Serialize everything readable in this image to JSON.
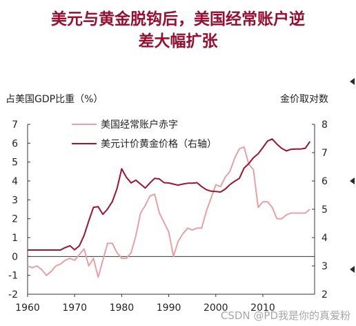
{
  "title_lines": [
    "美元与黄金脱钩后，美国经常账户逆",
    "差大幅扩张"
  ],
  "left_axis_label": "占美国GDP比重（%）",
  "right_axis_label": "金价取对数",
  "watermark": "CSDN @PD我是你的真爱粉",
  "colors": {
    "title": "#9a0d2f",
    "deficit": "#e8a0a5",
    "gold": "#a0122f",
    "bullet": "#2b2b2b"
  },
  "chart_data": {
    "type": "line",
    "xlim": [
      1960,
      2021
    ],
    "x_ticks": [
      1960,
      1970,
      1980,
      1990,
      2000,
      2010
    ],
    "ylim_left": [
      -2,
      7
    ],
    "y_left_ticks": [
      -2,
      -1,
      0,
      1,
      2,
      3,
      4,
      5,
      6,
      7
    ],
    "ylim_right": [
      2,
      8
    ],
    "y_right_ticks": [
      2,
      3,
      4,
      5,
      6,
      7,
      8
    ],
    "legend": "top-left",
    "series": [
      {
        "name": "美国经常账户赤字",
        "axis": "left",
        "x": [
          1960,
          1961,
          1962,
          1963,
          1964,
          1965,
          1966,
          1967,
          1968,
          1969,
          1970,
          1971,
          1972,
          1973,
          1974,
          1975,
          1976,
          1977,
          1978,
          1979,
          1980,
          1981,
          1982,
          1983,
          1984,
          1985,
          1986,
          1987,
          1988,
          1989,
          1990,
          1991,
          1992,
          1993,
          1994,
          1995,
          1996,
          1997,
          1998,
          1999,
          2000,
          2001,
          2002,
          2003,
          2004,
          2005,
          2006,
          2007,
          2008,
          2009,
          2010,
          2011,
          2012,
          2013,
          2014,
          2015,
          2016,
          2017,
          2018,
          2019,
          2020
        ],
        "values": [
          -0.5,
          -0.6,
          -0.5,
          -0.7,
          -1.0,
          -0.8,
          -0.5,
          -0.4,
          -0.2,
          -0.1,
          -0.2,
          0.1,
          0.4,
          -0.5,
          -0.1,
          -1.1,
          -0.2,
          0.7,
          0.7,
          0.2,
          -0.1,
          -0.1,
          0.2,
          1.1,
          2.3,
          2.7,
          3.2,
          3.3,
          2.3,
          1.8,
          1.3,
          0.0,
          0.8,
          1.2,
          1.5,
          1.4,
          1.5,
          1.5,
          2.4,
          3.1,
          3.8,
          3.7,
          4.2,
          4.5,
          5.2,
          5.7,
          5.8,
          4.9,
          4.6,
          2.6,
          2.9,
          2.9,
          2.6,
          2.0,
          2.0,
          2.2,
          2.3,
          2.3,
          2.3,
          2.3,
          2.5
        ]
      },
      {
        "name": "美元计价黄金价格（右轴）",
        "axis": "right",
        "x": [
          1960,
          1961,
          1962,
          1963,
          1964,
          1965,
          1966,
          1967,
          1968,
          1969,
          1970,
          1971,
          1972,
          1973,
          1974,
          1975,
          1976,
          1977,
          1978,
          1979,
          1980,
          1981,
          1982,
          1983,
          1984,
          1985,
          1986,
          1987,
          1988,
          1989,
          1990,
          1991,
          1992,
          1993,
          1994,
          1995,
          1996,
          1997,
          1998,
          1999,
          2000,
          2001,
          2002,
          2003,
          2004,
          2005,
          2006,
          2007,
          2008,
          2009,
          2010,
          2011,
          2012,
          2013,
          2014,
          2015,
          2016,
          2017,
          2018,
          2019,
          2020
        ],
        "values": [
          3.56,
          3.56,
          3.56,
          3.56,
          3.56,
          3.56,
          3.56,
          3.56,
          3.65,
          3.71,
          3.57,
          3.71,
          4.07,
          4.59,
          5.07,
          5.09,
          4.82,
          5.01,
          5.27,
          5.73,
          6.43,
          6.13,
          5.93,
          6.03,
          5.89,
          5.75,
          5.93,
          6.09,
          6.07,
          5.94,
          5.93,
          5.89,
          5.85,
          5.89,
          5.92,
          5.92,
          5.94,
          5.8,
          5.69,
          5.64,
          5.63,
          5.61,
          5.71,
          5.87,
          5.99,
          6.09,
          6.45,
          6.61,
          6.82,
          6.96,
          7.18,
          7.41,
          7.48,
          7.3,
          7.15,
          7.06,
          7.12,
          7.13,
          7.13,
          7.15,
          7.39
        ]
      }
    ]
  }
}
